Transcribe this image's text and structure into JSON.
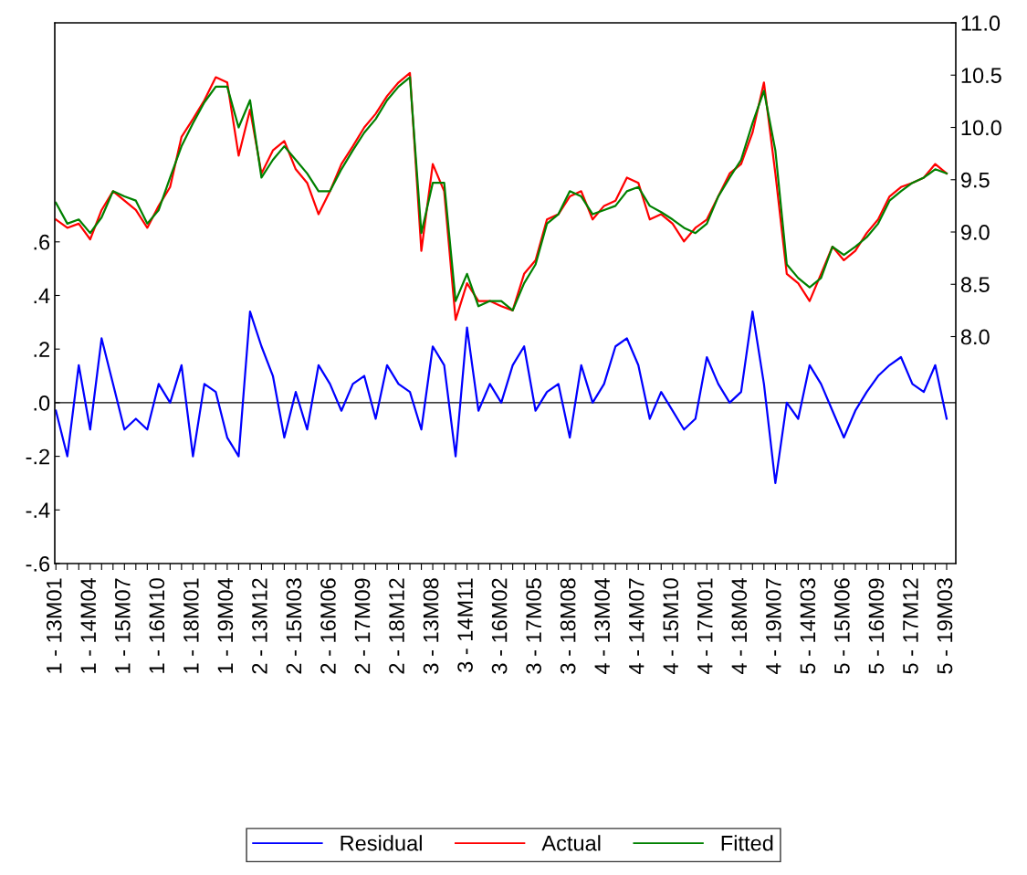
{
  "chart_data": {
    "type": "line",
    "categories": [
      "1 - 13M01",
      null,
      null,
      "1 - 14M04",
      null,
      null,
      "1 - 15M07",
      null,
      null,
      "1 - 16M10",
      null,
      null,
      "1 - 18M01",
      null,
      null,
      "1 - 19M04",
      null,
      null,
      "2 - 13M12",
      null,
      null,
      "2 - 15M03",
      null,
      null,
      "2 - 16M06",
      null,
      null,
      "2 - 17M09",
      null,
      null,
      "2 - 18M12",
      null,
      null,
      "3 - 13M08",
      null,
      null,
      "3 - 14M11",
      null,
      null,
      "3 - 16M02",
      null,
      null,
      "3 - 17M05",
      null,
      null,
      "3 - 18M08",
      null,
      null,
      "4 - 13M04",
      null,
      null,
      "4 - 14M07",
      null,
      null,
      "4 - 15M10",
      null,
      null,
      "4 - 17M01",
      null,
      null,
      "4 - 18M04",
      null,
      null,
      "4 - 19M07",
      null,
      null,
      "5 - 14M03",
      null,
      null,
      "5 - 15M06",
      null,
      null,
      "5 - 16M09",
      null,
      null,
      "5 - 17M12",
      null,
      null,
      "5 - 19M03"
    ],
    "series": [
      {
        "name": "Residual",
        "color": "#0000ff",
        "axis": "y",
        "values": [
          -0.03,
          -0.2,
          0.14,
          -0.1,
          0.24,
          0.07,
          -0.1,
          -0.06,
          -0.1,
          0.07,
          0.0,
          0.14,
          -0.2,
          0.07,
          0.04,
          -0.13,
          -0.2,
          0.34,
          0.21,
          0.1,
          -0.13,
          0.04,
          -0.1,
          0.14,
          0.07,
          -0.03,
          0.07,
          0.1,
          -0.06,
          0.14,
          0.07,
          0.04,
          -0.1,
          0.21,
          0.14,
          -0.2,
          0.28,
          -0.03,
          0.07,
          0.0,
          0.14,
          0.21,
          -0.03,
          0.04,
          0.07,
          -0.13,
          0.14,
          0.0,
          0.07,
          0.21,
          0.24,
          0.14,
          -0.06,
          0.04,
          -0.03,
          -0.1,
          -0.06,
          0.17,
          0.07,
          0.0,
          0.04,
          0.34,
          0.07,
          -0.3,
          0.0,
          -0.06,
          0.14,
          0.07,
          -0.03,
          -0.13,
          -0.03,
          0.04,
          0.1,
          0.14,
          0.17,
          0.07,
          0.04,
          0.14,
          -0.06
        ]
      },
      {
        "name": "Actual",
        "color": "#ff0000",
        "axis": "y2",
        "values": [
          9.12,
          9.04,
          9.08,
          8.93,
          9.21,
          9.39,
          9.3,
          9.21,
          9.04,
          9.25,
          9.43,
          9.91,
          10.08,
          10.26,
          10.48,
          10.43,
          9.73,
          10.17,
          9.56,
          9.78,
          9.87,
          9.6,
          9.47,
          9.17,
          9.39,
          9.65,
          9.82,
          10.0,
          10.13,
          10.3,
          10.43,
          10.52,
          8.82,
          9.65,
          9.39,
          8.16,
          8.51,
          8.34,
          8.34,
          8.29,
          8.25,
          8.6,
          8.73,
          9.12,
          9.17,
          9.34,
          9.39,
          9.12,
          9.25,
          9.3,
          9.52,
          9.47,
          9.12,
          9.17,
          9.08,
          8.91,
          9.04,
          9.12,
          9.34,
          9.56,
          9.65,
          9.95,
          10.43,
          9.56,
          8.6,
          8.51,
          8.34,
          8.6,
          8.86,
          8.73,
          8.82,
          8.99,
          9.12,
          9.34,
          9.43,
          9.47,
          9.52,
          9.65,
          9.56
        ]
      },
      {
        "name": "Fitted",
        "color": "#008000",
        "axis": "y2",
        "values": [
          9.28,
          9.08,
          9.12,
          8.99,
          9.14,
          9.39,
          9.34,
          9.3,
          9.08,
          9.21,
          9.52,
          9.82,
          10.04,
          10.24,
          10.39,
          10.39,
          10.0,
          10.26,
          9.52,
          9.69,
          9.82,
          9.69,
          9.56,
          9.39,
          9.39,
          9.6,
          9.78,
          9.95,
          10.08,
          10.26,
          10.39,
          10.48,
          8.99,
          9.47,
          9.47,
          8.34,
          8.6,
          8.29,
          8.34,
          8.34,
          8.25,
          8.51,
          8.69,
          9.08,
          9.17,
          9.39,
          9.34,
          9.17,
          9.21,
          9.25,
          9.39,
          9.43,
          9.25,
          9.19,
          9.12,
          9.04,
          8.99,
          9.08,
          9.34,
          9.52,
          9.69,
          10.04,
          10.35,
          9.78,
          8.69,
          8.56,
          8.47,
          8.56,
          8.86,
          8.78,
          8.86,
          8.95,
          9.08,
          9.3,
          9.39,
          9.47,
          9.52,
          9.6,
          9.56
        ]
      }
    ],
    "ylim": [
      -0.6,
      1.417
    ],
    "yticks": [
      {
        "value": -0.6,
        "label": "-.6"
      },
      {
        "value": -0.4,
        "label": "-.4"
      },
      {
        "value": -0.2,
        "label": "-.2"
      },
      {
        "value": 0.0,
        "label": ".0"
      },
      {
        "value": 0.2,
        "label": ".2"
      },
      {
        "value": 0.4,
        "label": ".4"
      },
      {
        "value": 0.6,
        "label": ".6"
      }
    ],
    "y2lim": [
      5.83,
      11.0
    ],
    "y2ticks": [
      {
        "value": 8.0,
        "label": "8.0"
      },
      {
        "value": 8.5,
        "label": "8.5"
      },
      {
        "value": 9.0,
        "label": "9.0"
      },
      {
        "value": 9.5,
        "label": "9.5"
      },
      {
        "value": 10.0,
        "label": "10.0"
      },
      {
        "value": 10.5,
        "label": "10.5"
      },
      {
        "value": 11.0,
        "label": "11.0"
      }
    ],
    "ref_lines": [
      {
        "axis": "y",
        "value": 0.0,
        "color": "#000000",
        "line_style": "solid"
      }
    ],
    "legend": "bottom",
    "grid": false,
    "marker": "none",
    "line_style": "solid"
  }
}
